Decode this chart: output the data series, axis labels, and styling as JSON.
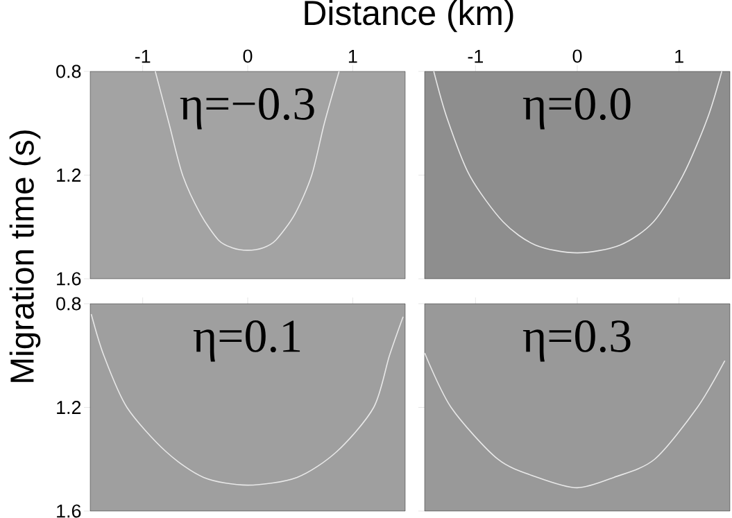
{
  "chart_data": [
    {
      "type": "line",
      "xlabel": "Distance (km)",
      "ylabel": "Migration time (s)",
      "annotations": [
        "η=−0.3"
      ],
      "xlim": [
        -1.5,
        1.5
      ],
      "ylim": [
        1.6,
        0.8
      ],
      "xticks": [
        -1,
        0,
        1
      ],
      "yticks": [
        0.8,
        1.2,
        1.6
      ],
      "series": [
        {
          "color": "#e8e8e8",
          "x": [
            -0.88,
            -0.75,
            -0.62,
            -0.45,
            -0.28,
            -0.15,
            0,
            0.15,
            0.27,
            0.45,
            0.61,
            0.73,
            0.87
          ],
          "values": [
            0.8,
            1.0,
            1.2,
            1.35,
            1.45,
            1.48,
            1.49,
            1.48,
            1.45,
            1.35,
            1.2,
            1.0,
            0.8
          ]
        }
      ]
    },
    {
      "type": "line",
      "annotations": [
        "η=0.0"
      ],
      "xlim": [
        -1.5,
        1.5
      ],
      "ylim": [
        1.6,
        0.8
      ],
      "xticks": [
        -1,
        0,
        1
      ],
      "yticks": [
        0.8,
        1.2,
        1.6
      ],
      "tick_labels": "x",
      "series": [
        {
          "color": "#e8e8e8",
          "x": [
            -1.41,
            -1.28,
            -1.06,
            -0.73,
            -0.41,
            0,
            0.42,
            0.75,
            1.04,
            1.28,
            1.42
          ],
          "values": [
            0.8,
            0.98,
            1.2,
            1.38,
            1.47,
            1.5,
            1.47,
            1.38,
            1.2,
            0.98,
            0.8
          ]
        }
      ]
    },
    {
      "type": "line",
      "annotations": [
        "η=0.1"
      ],
      "xlim": [
        -1.5,
        1.5
      ],
      "ylim": [
        1.6,
        0.8
      ],
      "xticks": [
        -1,
        0,
        1
      ],
      "yticks": [
        0.8,
        1.2,
        1.6
      ],
      "tick_labels": "y",
      "series": [
        {
          "color": "#e8e8e8",
          "x": [
            -1.49,
            -1.37,
            -1.15,
            -0.78,
            -0.42,
            0,
            0.47,
            0.85,
            1.2,
            1.35,
            1.48
          ],
          "values": [
            0.84,
            1.0,
            1.2,
            1.37,
            1.47,
            1.5,
            1.47,
            1.37,
            1.2,
            1.0,
            0.85
          ]
        }
      ]
    },
    {
      "type": "line",
      "annotations": [
        "η=0.3"
      ],
      "xlim": [
        -1.5,
        1.5
      ],
      "ylim": [
        1.6,
        0.8
      ],
      "xticks": [
        -1,
        0,
        1
      ],
      "yticks": [
        0.8,
        1.2,
        1.6
      ],
      "tick_labels": false,
      "series": [
        {
          "color": "#e8e8e8",
          "x": [
            -1.5,
            -1.24,
            -0.78,
            -0.39,
            0,
            0.36,
            0.76,
            1.18,
            1.45
          ],
          "values": [
            0.99,
            1.2,
            1.4,
            1.47,
            1.51,
            1.47,
            1.4,
            1.2,
            1.02
          ]
        }
      ]
    }
  ]
}
